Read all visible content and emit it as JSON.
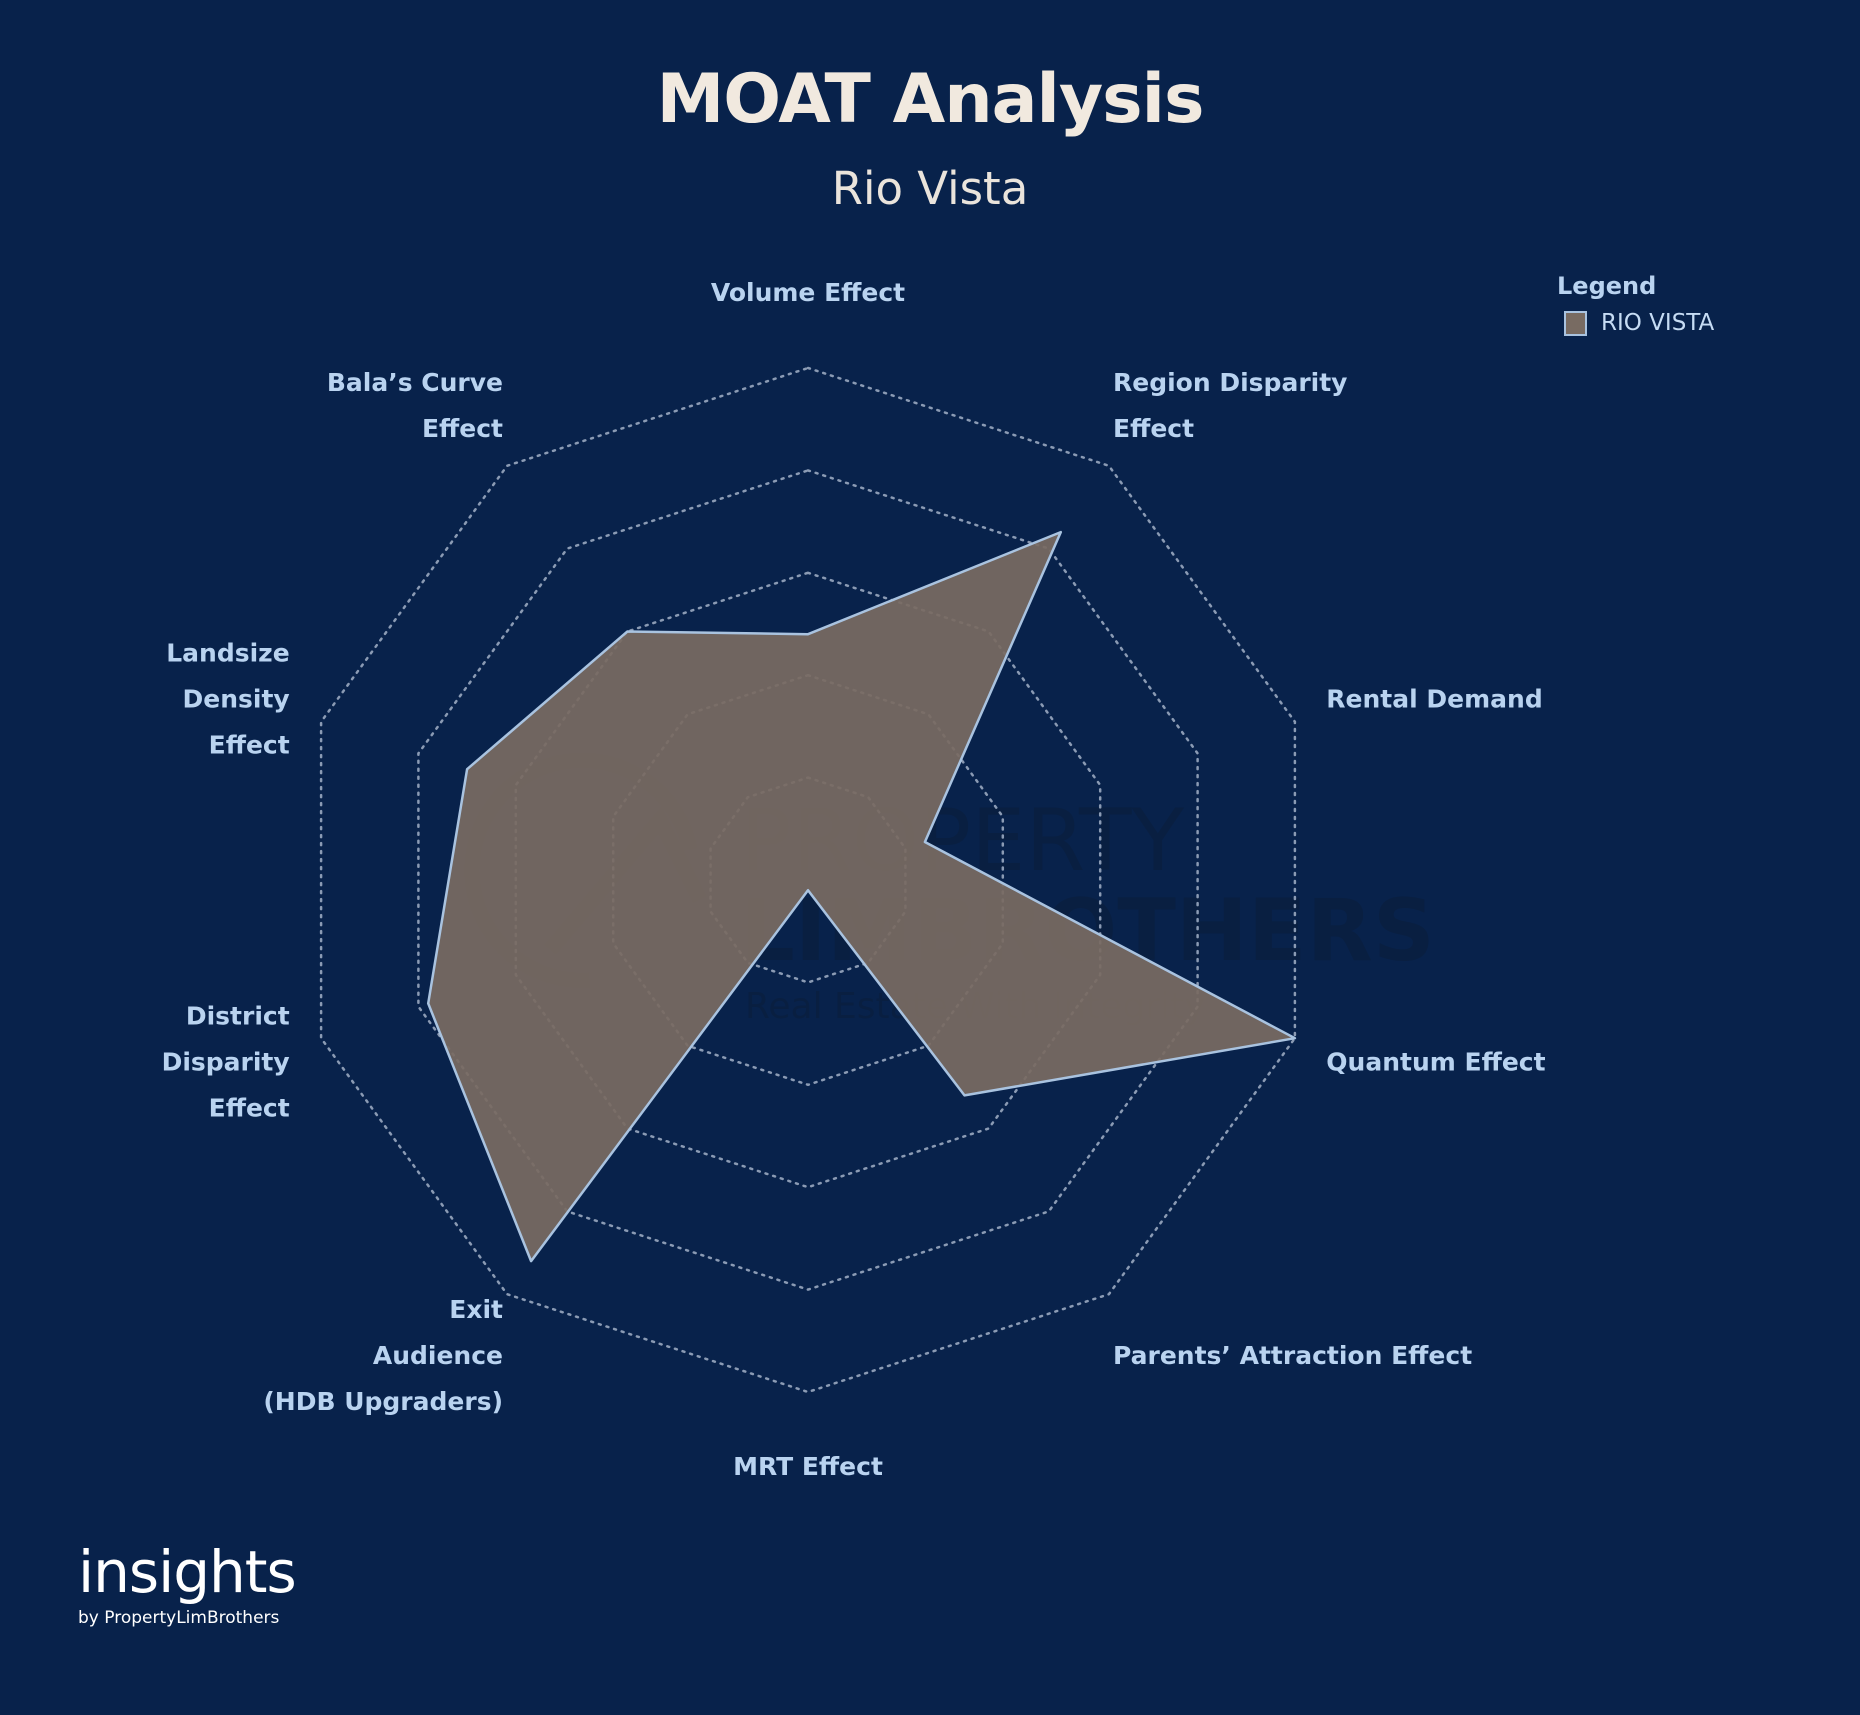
{
  "header": {
    "title": "MOAT Analysis",
    "subtitle": "Rio Vista"
  },
  "legend": {
    "title": "Legend",
    "items": [
      {
        "label": "RIO VISTA",
        "color": "#786b62"
      }
    ]
  },
  "watermark": {
    "line1": "PROPERTY",
    "line2": "LIMBROTHERS",
    "line3": "Real Estate With Integrity"
  },
  "branding": {
    "name": "insights",
    "sub": "by PropertyLimBrothers"
  },
  "chart_data": {
    "type": "radar",
    "title": "MOAT Analysis",
    "subtitle": "Rio Vista",
    "axes": [
      {
        "name": "Volume Effect",
        "label_lines": [
          "Volume Effect"
        ]
      },
      {
        "name": "Region Disparity Effect",
        "label_lines": [
          "Region Disparity",
          "Effect"
        ]
      },
      {
        "name": "Rental Demand",
        "label_lines": [
          "Rental Demand"
        ]
      },
      {
        "name": "Quantum Effect",
        "label_lines": [
          "Quantum Effect"
        ]
      },
      {
        "name": "Parents’ Attraction Effect",
        "label_lines": [
          "Parents’ Attraction Effect"
        ]
      },
      {
        "name": "MRT Effect",
        "label_lines": [
          "MRT Effect"
        ]
      },
      {
        "name": "Exit Audience (HDB Upgraders)",
        "label_lines": [
          "Exit",
          "Audience",
          "(HDB Upgraders)"
        ]
      },
      {
        "name": "District Disparity Effect",
        "label_lines": [
          "District",
          "Disparity",
          "Effect"
        ]
      },
      {
        "name": "Landsize Density Effect",
        "label_lines": [
          "Landsize",
          "Density",
          "Effect"
        ]
      },
      {
        "name": "Bala’s Curve Effect",
        "label_lines": [
          "Bala’s Curve",
          "Effect"
        ]
      }
    ],
    "range": [
      0,
      5
    ],
    "rings": [
      1,
      2,
      3,
      4,
      5
    ],
    "series": [
      {
        "name": "RIO VISTA",
        "color": "#786b62",
        "stroke": "#a9c3e0",
        "values": [
          2.4,
          4.2,
          1.2,
          5.0,
          2.6,
          0.1,
          4.6,
          3.9,
          3.5,
          3.0
        ]
      }
    ],
    "grid": true,
    "legend_position": "top-right",
    "colors": {
      "background": "#08224b",
      "grid": "#8b9bb4",
      "labels": "#b9d3f0"
    }
  }
}
